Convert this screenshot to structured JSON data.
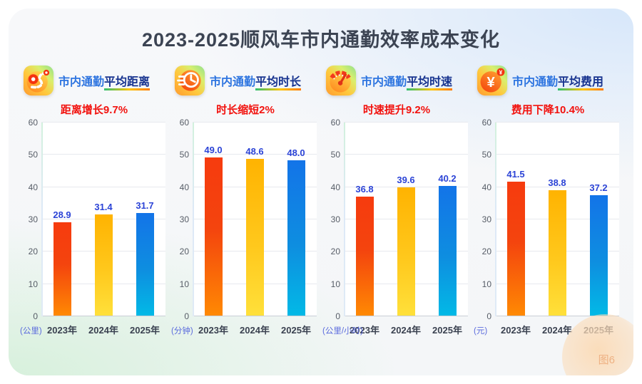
{
  "page": {
    "title": "2023-2025顺风车市内通勤效率成本变化",
    "figure_label": "图6"
  },
  "colors": {
    "title_text": "#3c4453",
    "subtitle_red": "#f2120e",
    "value_label_blue": "#2b43d6",
    "title_prefix_blue": "#2e75e0",
    "title_highlight_navy": "#17338f",
    "unit_blue": "#5a6add",
    "bar_gradients": [
      "linear-gradient(180deg,#f63b0e 0%,#f4440e 45%,#ff8903 100%)",
      "linear-gradient(180deg,#ffb301 0%,#ffc81c 55%,#ffe03a 100%)",
      "linear-gradient(180deg,#1374e8 0%,#0e8ee0 55%,#02b9e6 100%)"
    ]
  },
  "chart_data": [
    {
      "type": "bar",
      "icon": "route-icon",
      "title_prefix": "市内通勤",
      "title_highlight": "平均距离",
      "subtitle": "距离增长9.7%",
      "unit": "(公里)",
      "categories": [
        "2023年",
        "2024年",
        "2025年"
      ],
      "values": [
        28.9,
        31.4,
        31.7
      ],
      "value_labels": [
        "28.9",
        "31.4",
        "31.7"
      ],
      "ylim": [
        0,
        60
      ],
      "ytick_step": 10,
      "grid": true,
      "legend_position": "none"
    },
    {
      "type": "bar",
      "icon": "clock-icon",
      "title_prefix": "市内通勤",
      "title_highlight": "平均时长",
      "subtitle": "时长缩短2%",
      "unit": "(分钟)",
      "categories": [
        "2023年",
        "2024年",
        "2025年"
      ],
      "values": [
        49.0,
        48.6,
        48.0
      ],
      "value_labels": [
        "49.0",
        "48.6",
        "48.0"
      ],
      "ylim": [
        0,
        60
      ],
      "ytick_step": 10,
      "grid": true,
      "legend_position": "none"
    },
    {
      "type": "bar",
      "icon": "speedometer-icon",
      "title_prefix": "市内通勤",
      "title_highlight": "平均时速",
      "subtitle": "时速提升9.2%",
      "unit": "(公里/小时)",
      "categories": [
        "2023年",
        "2024年",
        "2025年"
      ],
      "values": [
        36.8,
        39.6,
        40.2
      ],
      "value_labels": [
        "36.8",
        "39.6",
        "40.2"
      ],
      "ylim": [
        0,
        60
      ],
      "ytick_step": 10,
      "grid": true,
      "legend_position": "none"
    },
    {
      "type": "bar",
      "icon": "yuan-icon",
      "title_prefix": "市内通勤",
      "title_highlight": "平均费用",
      "subtitle": "费用下降10.4%",
      "unit": "(元)",
      "categories": [
        "2023年",
        "2024年",
        "2025年"
      ],
      "values": [
        41.5,
        38.8,
        37.2
      ],
      "value_labels": [
        "41.5",
        "38.8",
        "37.2"
      ],
      "ylim": [
        0,
        60
      ],
      "ytick_step": 10,
      "grid": true,
      "legend_position": "none"
    }
  ]
}
